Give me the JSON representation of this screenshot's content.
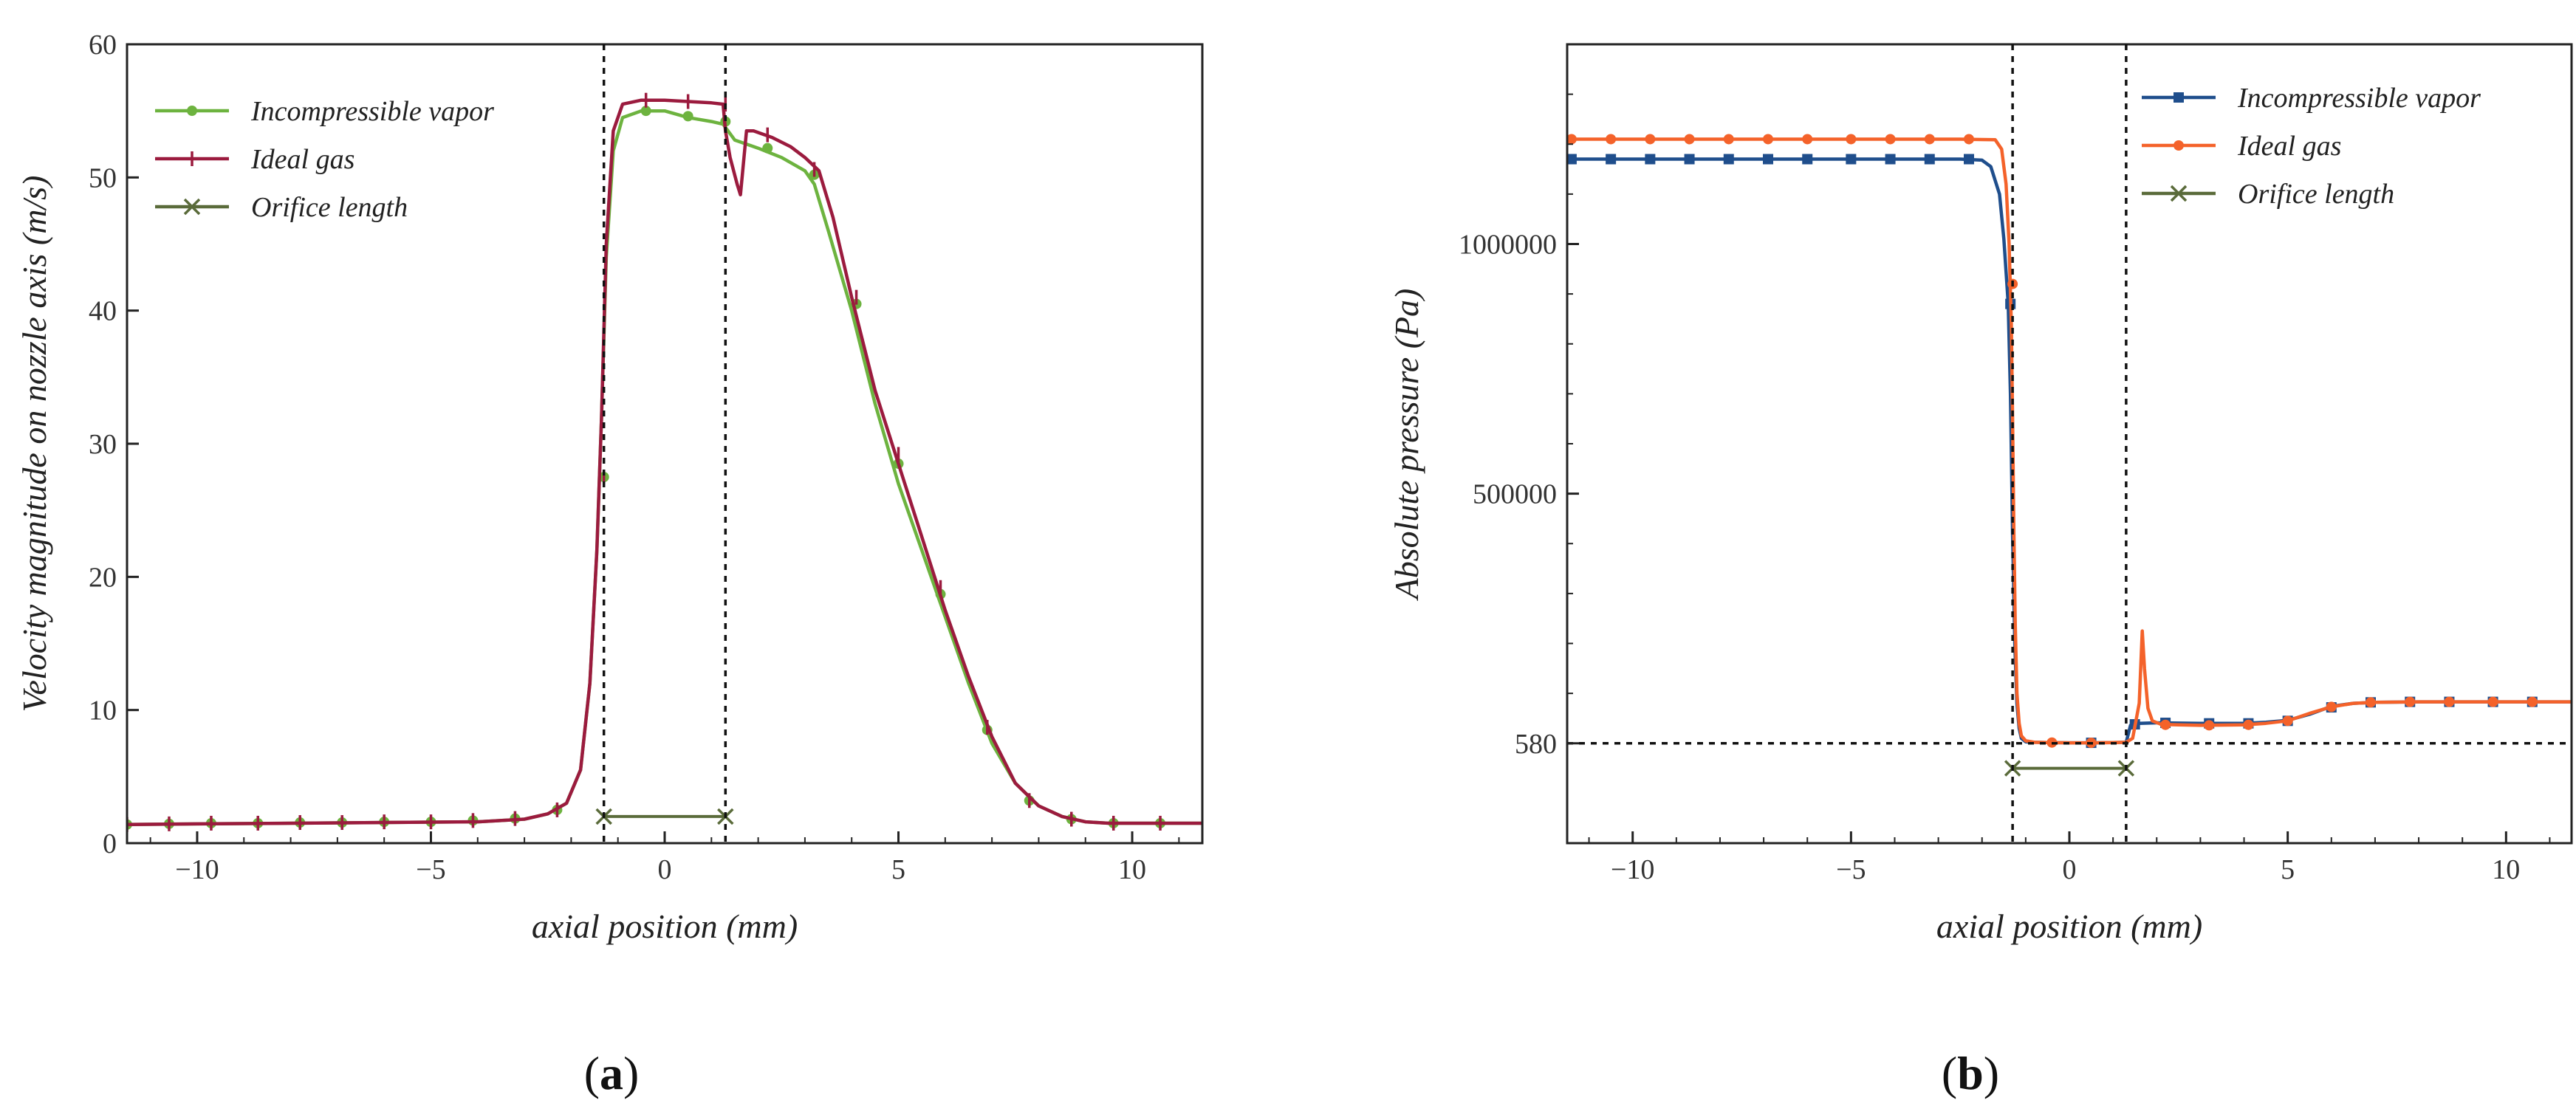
{
  "chart_data": [
    {
      "type": "line",
      "caption": {
        "pre": "(",
        "letter": "a",
        "post": ")"
      },
      "xlabel": "axial position (mm)",
      "ylabel": "Velocity magnitude on nozzle axis (m/s)",
      "xlim": [
        -11.5,
        11.5
      ],
      "ylim": [
        0,
        60
      ],
      "xticks": [
        -10,
        -5,
        0,
        5,
        10
      ],
      "xtick_labels": [
        "−10",
        "−5",
        "0",
        "5",
        "10"
      ],
      "yticks": [
        0,
        10,
        20,
        30,
        40,
        50,
        60
      ],
      "ytick_labels": [
        "0",
        "10",
        "20",
        "30",
        "40",
        "50",
        "60"
      ],
      "vlines": [
        -1.3,
        1.3
      ],
      "legend": [
        "Incompressible vapor",
        "Ideal gas",
        "Orifice length"
      ],
      "legend_position": "top-left",
      "series": [
        {
          "name": "Incompressible vapor",
          "color": "#6db33f",
          "marker": "dot",
          "x": [
            -11.5,
            -10,
            -8,
            -6,
            -4,
            -3,
            -2.5,
            -2.1,
            -1.8,
            -1.6,
            -1.45,
            -1.35,
            -1.25,
            -1.1,
            -0.9,
            -0.5,
            0,
            0.5,
            1.0,
            1.25,
            1.5,
            2.0,
            2.5,
            3.0,
            3.2,
            3.5,
            4.0,
            4.5,
            5.0,
            5.5,
            6.0,
            6.5,
            7.0,
            7.5,
            8.0,
            8.5,
            9.0,
            9.5,
            10.0,
            11.5
          ],
          "y": [
            1.4,
            1.45,
            1.5,
            1.55,
            1.6,
            1.8,
            2.2,
            3.0,
            5.5,
            12,
            22,
            32,
            44,
            52,
            54.5,
            55,
            55,
            54.5,
            54.2,
            54,
            52.8,
            52.2,
            51.5,
            50.5,
            49.5,
            46,
            40,
            33,
            27,
            22,
            17,
            12,
            7.5,
            4.5,
            2.8,
            2.0,
            1.6,
            1.5,
            1.5,
            1.5
          ],
          "markers_x": [
            -11.5,
            -10.6,
            -9.7,
            -8.7,
            -7.8,
            -6.9,
            -6.0,
            -5.0,
            -4.1,
            -3.2,
            -2.3,
            -1.3,
            -0.4,
            0.5,
            1.3,
            2.2,
            3.2,
            4.1,
            5.0,
            5.9,
            6.9,
            7.8,
            8.7,
            9.6,
            10.6
          ],
          "markers_y": [
            1.4,
            1.45,
            1.5,
            1.5,
            1.55,
            1.55,
            1.6,
            1.6,
            1.7,
            1.85,
            2.5,
            27.5,
            55,
            54.6,
            54.2,
            52.2,
            50.2,
            40.5,
            28.5,
            18.7,
            8.5,
            3.2,
            1.8,
            1.5,
            1.5
          ]
        },
        {
          "name": "Ideal gas",
          "color": "#9b1b3e",
          "marker": "tick",
          "x": [
            -11.5,
            -10,
            -8,
            -6,
            -4,
            -3,
            -2.5,
            -2.1,
            -1.8,
            -1.6,
            -1.45,
            -1.35,
            -1.25,
            -1.1,
            -0.9,
            -0.5,
            0,
            0.5,
            1.0,
            1.25,
            1.3,
            1.4,
            1.55,
            1.62,
            1.75,
            1.9,
            2.3,
            2.7,
            3.0,
            3.3,
            3.6,
            4.0,
            4.5,
            5.0,
            5.5,
            6.0,
            6.5,
            7.0,
            7.5,
            8.0,
            8.5,
            9.0,
            9.5,
            10.0,
            11.5
          ],
          "y": [
            1.4,
            1.45,
            1.5,
            1.55,
            1.6,
            1.8,
            2.2,
            3.0,
            5.5,
            12,
            22,
            32,
            45,
            53.5,
            55.5,
            55.8,
            55.8,
            55.7,
            55.6,
            55.5,
            53.5,
            51.5,
            49.5,
            48.7,
            53.5,
            53.5,
            53,
            52.3,
            51.5,
            50.5,
            47,
            41,
            34,
            28.5,
            23,
            17.5,
            12.5,
            8,
            4.5,
            2.8,
            2.0,
            1.6,
            1.5,
            1.5,
            1.5
          ],
          "markers_x": [
            -11.5,
            -10.6,
            -9.7,
            -8.7,
            -7.8,
            -6.9,
            -6.0,
            -5.0,
            -4.1,
            -3.2,
            -2.3,
            -1.3,
            -0.4,
            0.5,
            1.3,
            2.2,
            3.2,
            4.1,
            5.0,
            5.9,
            6.9,
            7.8,
            8.7,
            9.6,
            10.6
          ],
          "markers_y": [
            1.4,
            1.45,
            1.5,
            1.5,
            1.55,
            1.55,
            1.6,
            1.6,
            1.7,
            1.85,
            2.5,
            27.5,
            55.8,
            55.7,
            55.5,
            53.2,
            50.6,
            41.0,
            29.2,
            19.2,
            8.7,
            3.2,
            1.8,
            1.5,
            1.5
          ]
        },
        {
          "name": "Orifice length",
          "color": "#5a6b3a",
          "marker": "x",
          "x": [
            -1.3,
            1.3
          ],
          "y": [
            2,
            2
          ],
          "markers_x": [
            -1.3,
            1.3
          ],
          "markers_y": [
            2,
            2
          ]
        }
      ]
    },
    {
      "type": "line",
      "caption": {
        "pre": "(",
        "letter": "b",
        "post": ")"
      },
      "xlabel": "axial position (mm)",
      "ylabel": "Absolute pressure (Pa)",
      "xlim": [
        -11.5,
        11.5
      ],
      "ylim": [
        -200000,
        1400000
      ],
      "y_axis_note": "tick labels as printed; the 0-level is labelled 580",
      "xticks": [
        -10,
        -5,
        0,
        5,
        10
      ],
      "xtick_labels": [
        "−10",
        "−5",
        "0",
        "5",
        "10"
      ],
      "yticks": [
        0,
        500000,
        1000000
      ],
      "ytick_labels": [
        "580",
        "500000",
        "1000000"
      ],
      "vlines": [
        -1.3,
        1.3
      ],
      "hlines": [
        0
      ],
      "legend": [
        "Incompressible vapor",
        "Ideal gas",
        "Orifice length"
      ],
      "legend_position": "top-right",
      "series": [
        {
          "name": "Incompressible vapor",
          "color": "#1f4e8c",
          "marker": "square",
          "x": [
            -11.5,
            -2.5,
            -2.0,
            -1.8,
            -1.6,
            -1.5,
            -1.4,
            -1.35,
            -1.3,
            -1.25,
            -1.2,
            -1.15,
            -1.1,
            -1.0,
            -0.8,
            -0.5,
            0,
            0.5,
            1.0,
            1.3,
            1.4,
            1.6,
            2.0,
            3.0,
            4.0,
            4.5,
            5.0,
            5.5,
            6.0,
            6.5,
            7.0,
            8.0,
            9.0,
            11.5
          ],
          "y": [
            1170000,
            1170000,
            1168000,
            1155000,
            1100000,
            1010000,
            880000,
            700000,
            420000,
            200000,
            80000,
            30000,
            10000,
            3000,
            2000,
            1500,
            1000,
            1000,
            1500,
            2000,
            36000,
            40000,
            41000,
            40000,
            40000,
            42000,
            46000,
            58000,
            74000,
            80000,
            82000,
            83000,
            83000,
            83000
          ],
          "markers_x": [
            -11.4,
            -10.5,
            -9.6,
            -8.7,
            -7.8,
            -6.9,
            -6.0,
            -5.0,
            -4.1,
            -3.2,
            -2.3,
            -1.35,
            0.5,
            1.5,
            2.2,
            3.2,
            4.1,
            5.0,
            6.0,
            6.9,
            7.8,
            8.7,
            9.7,
            10.6
          ],
          "markers_y": [
            1170000,
            1170000,
            1170000,
            1170000,
            1170000,
            1170000,
            1170000,
            1170000,
            1170000,
            1170000,
            1170000,
            880000,
            1000,
            38000,
            41000,
            40000,
            40000,
            45000,
            72000,
            82000,
            83000,
            83000,
            83000,
            83000
          ]
        },
        {
          "name": "Ideal gas",
          "color": "#f4622a",
          "marker": "dot",
          "x": [
            -11.5,
            -2.5,
            -1.7,
            -1.55,
            -1.45,
            -1.38,
            -1.33,
            -1.3,
            -1.27,
            -1.24,
            -1.2,
            -1.15,
            -1.1,
            -1.0,
            -0.8,
            -0.5,
            0,
            0.5,
            1.0,
            1.3,
            1.45,
            1.6,
            1.67,
            1.72,
            1.8,
            1.9,
            2.1,
            2.5,
            3.0,
            4.0,
            4.5,
            5.0,
            5.5,
            6.0,
            6.5,
            7.0,
            8.0,
            9.0,
            11.5
          ],
          "y": [
            1210000,
            1210000,
            1209000,
            1190000,
            1120000,
            1000000,
            840000,
            650000,
            420000,
            240000,
            100000,
            40000,
            15000,
            5000,
            2000,
            1500,
            1000,
            1000,
            1500,
            2000,
            10000,
            80000,
            225000,
            150000,
            70000,
            45000,
            38000,
            37000,
            36000,
            37000,
            40000,
            45000,
            60000,
            73000,
            80000,
            82000,
            83000,
            83000,
            83000
          ],
          "markers_x": [
            -11.4,
            -10.5,
            -9.6,
            -8.7,
            -7.8,
            -6.9,
            -6.0,
            -5.0,
            -4.1,
            -3.2,
            -2.3,
            -1.3,
            -0.4,
            0.5,
            2.2,
            3.2,
            4.1,
            5.0,
            6.0,
            6.9,
            7.8,
            8.7,
            9.7,
            10.6
          ],
          "markers_y": [
            1210000,
            1210000,
            1210000,
            1210000,
            1210000,
            1210000,
            1210000,
            1210000,
            1210000,
            1210000,
            1210000,
            920000,
            1500,
            1000,
            37000,
            36000,
            37000,
            45000,
            73000,
            82000,
            83000,
            83000,
            83000,
            83000
          ]
        },
        {
          "name": "Orifice length",
          "color": "#5a6b3a",
          "marker": "x",
          "x": [
            -1.3,
            1.3
          ],
          "y": [
            -50000,
            -50000
          ],
          "markers_x": [
            -1.3,
            1.3
          ],
          "markers_y": [
            -50000,
            -50000
          ]
        }
      ]
    }
  ]
}
